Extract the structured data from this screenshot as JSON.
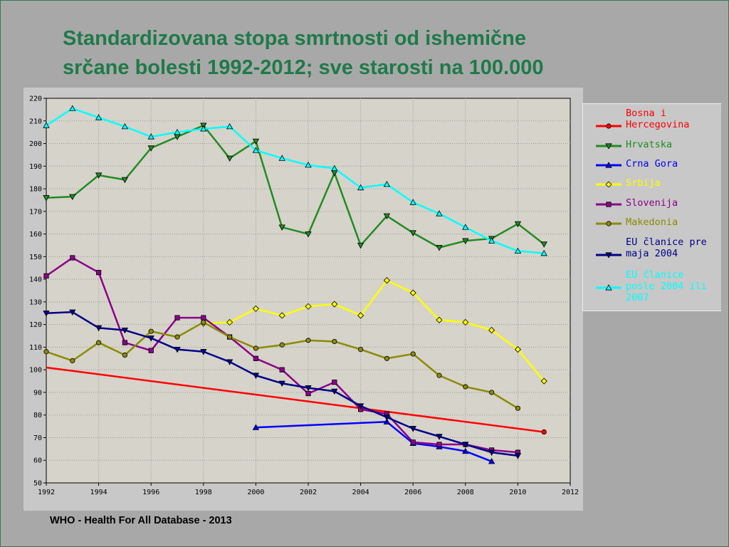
{
  "title_line1": "Standardizovana stopa smrtnosti od ishemične",
  "title_line2": "srčane bolesti 1992-2012; sve starosti na 100.000",
  "source": "WHO - Health For All Database - 2013",
  "chart_data": {
    "type": "line",
    "title": "Standardizovana stopa smrtnosti od ishemične srčane bolesti 1992-2012; sve starosti na 100.000",
    "xlim": [
      1992,
      2012
    ],
    "ylim": [
      50,
      220
    ],
    "x_ticks": [
      1992,
      1994,
      1996,
      1998,
      2000,
      2002,
      2004,
      2006,
      2008,
      2010,
      2012
    ],
    "y_ticks": [
      50,
      60,
      70,
      80,
      90,
      100,
      110,
      120,
      130,
      140,
      150,
      160,
      170,
      180,
      190,
      200,
      210,
      220
    ],
    "grid": true,
    "legend_position": "right",
    "series": [
      {
        "name": "Bosna i Hercegovina",
        "color": "#ff0000",
        "marker": "circle",
        "x": [
          1992,
          2011
        ],
        "y": [
          101,
          72.5
        ],
        "marker_x": [
          2011
        ],
        "marker_y": [
          72.5
        ]
      },
      {
        "name": "Hrvatska",
        "color": "#228b22",
        "marker": "triangle-down",
        "x": [
          1992,
          1993,
          1994,
          1995,
          1996,
          1997,
          1998,
          1999,
          2000,
          2001,
          2002,
          2003,
          2004,
          2005,
          2006,
          2007,
          2008,
          2009,
          2010,
          2011
        ],
        "y": [
          176,
          176.5,
          186,
          184,
          198,
          203,
          208,
          193.5,
          201,
          163,
          160,
          187,
          155,
          168,
          160.5,
          154,
          157,
          158,
          164.5,
          155.5
        ]
      },
      {
        "name": "Crna Gora",
        "color": "#0000ff",
        "marker": "triangle-up",
        "x": [
          2000,
          2005,
          2006,
          2007,
          2008,
          2009
        ],
        "y": [
          74.5,
          77,
          67.5,
          66,
          64,
          59.5
        ]
      },
      {
        "name": "Srbija",
        "color": "#ffff00",
        "marker": "diamond",
        "x": [
          1998,
          1999,
          2000,
          2001,
          2002,
          2003,
          2004,
          2005,
          2006,
          2007,
          2008,
          2009,
          2010,
          2011
        ],
        "y": [
          120.5,
          121,
          127,
          124,
          128,
          129,
          124,
          139.5,
          134,
          122,
          121,
          117.5,
          109,
          95
        ]
      },
      {
        "name": "Slovenija",
        "color": "#8b008b",
        "marker": "square",
        "x": [
          1992,
          1993,
          1994,
          1995,
          1996,
          1997,
          1998,
          1999,
          2000,
          2001,
          2002,
          2003,
          2004,
          2005,
          2006,
          2007,
          2008,
          2009,
          2010
        ],
        "y": [
          141.5,
          149.5,
          143,
          112,
          108.5,
          123,
          123,
          114.5,
          105,
          100,
          89.5,
          94.5,
          82.5,
          80.5,
          68,
          67,
          67,
          64.5,
          63.5
        ]
      },
      {
        "name": "Makedonia",
        "color": "#8b8b00",
        "marker": "circle",
        "x": [
          1992,
          1993,
          1994,
          1995,
          1996,
          1997,
          1998,
          1999,
          2000,
          2001,
          2002,
          2003,
          2004,
          2005,
          2006,
          2007,
          2008,
          2009,
          2010
        ],
        "y": [
          108,
          104,
          112,
          106.5,
          117,
          114.5,
          121,
          114.5,
          109.5,
          111,
          113,
          112.5,
          109,
          105,
          107,
          97.5,
          92.5,
          90,
          83
        ]
      },
      {
        "name": "EU članice pre maja 2004",
        "color": "#00008b",
        "marker": "triangle-down",
        "x": [
          1992,
          1993,
          1994,
          1995,
          1996,
          1997,
          1998,
          1999,
          2000,
          2001,
          2002,
          2003,
          2004,
          2005,
          2006,
          2007,
          2008,
          2009,
          2010
        ],
        "y": [
          125,
          125.5,
          118.5,
          117.5,
          114,
          109,
          108,
          103.5,
          97.5,
          94,
          92,
          90.5,
          84,
          79,
          74,
          70.5,
          67,
          63.5,
          62
        ]
      },
      {
        "name": "EU članice posle 2004 ili 2007",
        "color": "#00ffff",
        "marker": "triangle-up",
        "x": [
          1992,
          1993,
          1994,
          1995,
          1996,
          1997,
          1998,
          1999,
          2000,
          2001,
          2002,
          2003,
          2004,
          2005,
          2006,
          2007,
          2008,
          2009,
          2010,
          2011
        ],
        "y": [
          208,
          215.5,
          211.5,
          207.5,
          203,
          205,
          206.5,
          207.5,
          197,
          193.5,
          190.5,
          189,
          180.5,
          182,
          174,
          169,
          163,
          157,
          152.5,
          151.5
        ]
      }
    ]
  }
}
